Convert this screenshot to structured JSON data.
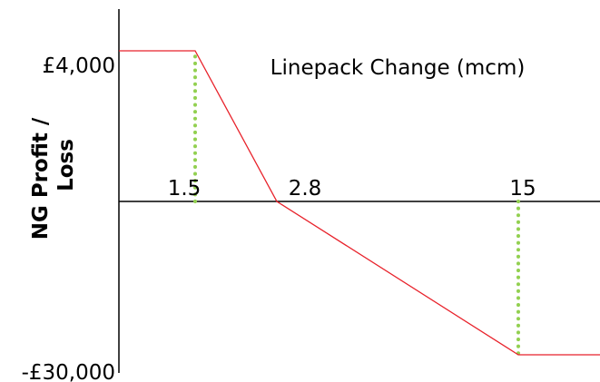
{
  "chart_data": {
    "type": "line",
    "title": "",
    "xlabel": "Linepack Change (mcm)",
    "ylabel_lines": [
      "NG Profit /",
      "Loss"
    ],
    "x_ticks": [
      "1.5",
      "2.8",
      "15"
    ],
    "x_tick_values": [
      1.5,
      2.8,
      15
    ],
    "y_ticks": [
      "£4,000",
      "-£30,000"
    ],
    "y_tick_values": [
      4000,
      -30000
    ],
    "grid": false,
    "legend": "none",
    "series": [
      {
        "values": [
          {
            "x": 0,
            "y": 4000
          },
          {
            "x": 1.5,
            "y": 4000
          },
          {
            "x": 2.8,
            "y": 0
          },
          {
            "x": 15,
            "y": -30000
          },
          {
            "x": 20,
            "y": -30000
          }
        ],
        "color": "#e8212a"
      }
    ],
    "reference_lines": [
      {
        "x": 1.5,
        "y_from": 0,
        "y_to": 4000,
        "style": "dotted",
        "color": "#92d050"
      },
      {
        "x": 15,
        "y_from": 0,
        "y_to": -30000,
        "style": "dotted",
        "color": "#92d050"
      }
    ],
    "axis_color": "#000000"
  }
}
